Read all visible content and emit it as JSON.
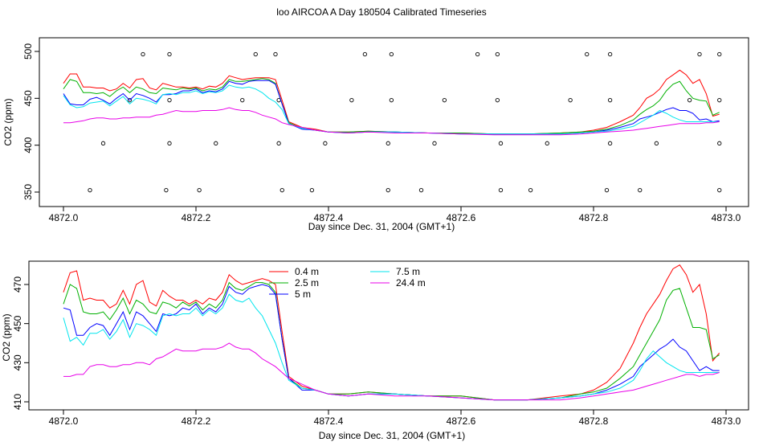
{
  "title": "loo AIRCOA A  Day 180504  Calibrated Timeseries",
  "colors": {
    "0.4 m": "#ff0000",
    "2.5 m": "#00b000",
    "5 m": "#0000ff",
    "7.5 m": "#00e5ee",
    "24.4 m": "#e800e8"
  },
  "chart_data": [
    {
      "type": "line",
      "xlabel": "Day since Dec. 31, 2004 (GMT+1)",
      "ylabel": "CO2 (ppm)",
      "xlim": [
        4871.99,
        4873.03
      ],
      "ylim": [
        348,
        503
      ],
      "xticks": [
        "4872.0",
        "4872.2",
        "4872.4",
        "4872.6",
        "4872.8",
        "4873.0"
      ],
      "yticks": [
        "350",
        "400",
        "450",
        "500"
      ],
      "grid": false,
      "x": [
        4872.0,
        4872.01,
        4872.02,
        4872.03,
        4872.04,
        4872.05,
        4872.06,
        4872.07,
        4872.08,
        4872.09,
        4872.1,
        4872.11,
        4872.12,
        4872.13,
        4872.14,
        4872.15,
        4872.16,
        4872.17,
        4872.18,
        4872.19,
        4872.2,
        4872.21,
        4872.22,
        4872.23,
        4872.24,
        4872.25,
        4872.26,
        4872.27,
        4872.28,
        4872.29,
        4872.3,
        4872.31,
        4872.32,
        4872.33,
        4872.34,
        4872.36,
        4872.38,
        4872.4,
        4872.43,
        4872.46,
        4872.5,
        4872.55,
        4872.6,
        4872.65,
        4872.7,
        4872.75,
        4872.78,
        4872.8,
        4872.82,
        4872.84,
        4872.86,
        4872.87,
        4872.88,
        4872.89,
        4872.9,
        4872.91,
        4872.92,
        4872.93,
        4872.94,
        4872.95,
        4872.96,
        4872.97,
        4872.98,
        4872.99
      ],
      "series": [
        {
          "name": "0.4 m",
          "values": [
            466,
            476,
            476,
            462,
            462,
            461,
            461,
            458,
            460,
            466,
            461,
            470,
            471,
            461,
            459,
            466,
            464,
            462,
            462,
            461,
            462,
            460,
            463,
            462,
            466,
            474,
            472,
            470,
            471,
            472,
            472,
            472,
            470,
            448,
            425,
            419,
            417,
            414,
            414,
            415,
            414,
            413,
            413,
            412,
            412,
            413,
            414,
            416,
            419,
            425,
            432,
            440,
            450,
            454,
            460,
            470,
            475,
            480,
            475,
            466,
            470,
            455,
            431,
            433
          ],
          "markers": [
            500,
            500,
            500,
            500,
            500,
            500,
            500,
            500,
            500,
            500,
            500,
            500,
            500,
            500,
            500,
            500,
            500,
            500,
            500,
            500,
            500,
            500,
            500,
            500,
            500,
            500,
            500,
            500,
            500,
            500,
            500,
            500,
            500,
            500,
            500,
            500,
            500,
            500,
            500,
            500,
            500,
            500,
            500,
            500,
            500,
            500,
            500,
            500,
            500,
            500,
            500,
            500,
            500,
            500,
            500,
            500,
            500,
            500,
            500,
            500,
            500,
            500,
            500,
            500
          ]
        },
        {
          "name": "2.5 m",
          "values": [
            460,
            470,
            468,
            456,
            456,
            455,
            456,
            452,
            458,
            462,
            456,
            462,
            460,
            456,
            455,
            461,
            460,
            459,
            461,
            460,
            461,
            458,
            460,
            459,
            462,
            470,
            468,
            468,
            469,
            470,
            471,
            470,
            466,
            444,
            424,
            418,
            416,
            414,
            414,
            415,
            414,
            413,
            413,
            412,
            412,
            413,
            414,
            415,
            417,
            421,
            427,
            433,
            438,
            442,
            448,
            458,
            465,
            468,
            458,
            450,
            448,
            447,
            432,
            435
          ]
        },
        {
          "name": "5 m",
          "values": [
            455,
            444,
            443,
            443,
            449,
            451,
            448,
            444,
            450,
            455,
            448,
            455,
            453,
            450,
            446,
            454,
            454,
            455,
            458,
            458,
            460,
            456,
            458,
            457,
            460,
            468,
            466,
            465,
            468,
            469,
            469,
            469,
            465,
            444,
            423,
            417,
            416,
            414,
            413,
            414,
            414,
            413,
            412,
            412,
            412,
            412,
            413,
            414,
            416,
            419,
            423,
            428,
            430,
            432,
            435,
            438,
            440,
            437,
            437,
            434,
            427,
            428,
            425,
            426
          ]
        },
        {
          "name": "7.5 m",
          "values": [
            453,
            443,
            440,
            441,
            445,
            446,
            447,
            442,
            447,
            452,
            444,
            450,
            449,
            447,
            444,
            454,
            455,
            454,
            456,
            456,
            458,
            455,
            457,
            456,
            458,
            464,
            462,
            461,
            462,
            460,
            456,
            450,
            446,
            438,
            423,
            418,
            416,
            414,
            413,
            414,
            414,
            413,
            412,
            412,
            412,
            412,
            413,
            414,
            415,
            417,
            420,
            424,
            428,
            432,
            437,
            434,
            430,
            427,
            425,
            425,
            425,
            425,
            425,
            425
          ]
        },
        {
          "name": "24.4 m",
          "values": [
            424,
            424,
            425,
            426,
            428,
            429,
            429,
            428,
            428,
            429,
            429,
            430,
            430,
            430,
            432,
            433,
            435,
            437,
            436,
            436,
            436,
            437,
            437,
            437,
            438,
            440,
            438,
            437,
            437,
            435,
            432,
            430,
            428,
            424,
            422,
            419,
            416,
            414,
            413,
            414,
            413,
            413,
            412,
            411,
            411,
            411,
            412,
            413,
            414,
            415,
            416,
            417,
            418,
            419,
            420,
            421,
            422,
            423,
            423,
            423,
            423,
            424,
            424,
            425
          ]
        }
      ],
      "markers": {
        "symbol": "open-circle",
        "points": [
          [
            4872.04,
            352
          ],
          [
            4872.06,
            402
          ],
          [
            4872.1,
            448
          ],
          [
            4872.12,
            497
          ],
          [
            4872.155,
            352
          ],
          [
            4872.16,
            402
          ],
          [
            4872.16,
            448
          ],
          [
            4872.16,
            497
          ],
          [
            4872.205,
            352
          ],
          [
            4872.23,
            402
          ],
          [
            4872.27,
            448
          ],
          [
            4872.29,
            497
          ],
          [
            4872.32,
            497
          ],
          [
            4872.325,
            402
          ],
          [
            4872.325,
            448
          ],
          [
            4872.33,
            352
          ],
          [
            4872.375,
            352
          ],
          [
            4872.395,
            402
          ],
          [
            4872.435,
            448
          ],
          [
            4872.455,
            497
          ],
          [
            4872.49,
            352
          ],
          [
            4872.49,
            402
          ],
          [
            4872.495,
            448
          ],
          [
            4872.495,
            497
          ],
          [
            4872.54,
            352
          ],
          [
            4872.56,
            402
          ],
          [
            4872.575,
            448
          ],
          [
            4872.625,
            497
          ],
          [
            4872.655,
            448
          ],
          [
            4872.655,
            497
          ],
          [
            4872.66,
            352
          ],
          [
            4872.66,
            402
          ],
          [
            4872.705,
            352
          ],
          [
            4872.73,
            402
          ],
          [
            4872.765,
            448
          ],
          [
            4872.79,
            497
          ],
          [
            4872.82,
            352
          ],
          [
            4872.825,
            402
          ],
          [
            4872.825,
            448
          ],
          [
            4872.825,
            497
          ],
          [
            4872.87,
            352
          ],
          [
            4872.895,
            402
          ],
          [
            4872.945,
            448
          ],
          [
            4872.96,
            497
          ],
          [
            4872.99,
            352
          ],
          [
            4872.99,
            402
          ],
          [
            4872.99,
            448
          ],
          [
            4872.99,
            497
          ]
        ]
      }
    },
    {
      "type": "line",
      "xlabel": "Day since Dec. 31, 2004 (GMT+1)",
      "ylabel": "CO2 (ppm)",
      "xlim": [
        4871.99,
        4873.03
      ],
      "ylim": [
        408,
        483
      ],
      "xticks": [
        "4872.0",
        "4872.2",
        "4872.4",
        "4872.6",
        "4872.8",
        "4873.0"
      ],
      "yticks": [
        "410",
        "430",
        "450",
        "470"
      ],
      "grid": false,
      "legend": {
        "placement": "top-center",
        "entries": [
          "0.4 m",
          "2.5 m",
          "5 m",
          "7.5 m",
          "24.4 m"
        ]
      },
      "x": [
        4872.0,
        4872.01,
        4872.02,
        4872.03,
        4872.04,
        4872.05,
        4872.06,
        4872.07,
        4872.08,
        4872.09,
        4872.1,
        4872.11,
        4872.12,
        4872.13,
        4872.14,
        4872.15,
        4872.16,
        4872.17,
        4872.18,
        4872.19,
        4872.2,
        4872.21,
        4872.22,
        4872.23,
        4872.24,
        4872.25,
        4872.26,
        4872.27,
        4872.28,
        4872.29,
        4872.3,
        4872.31,
        4872.32,
        4872.33,
        4872.34,
        4872.36,
        4872.38,
        4872.4,
        4872.43,
        4872.46,
        4872.5,
        4872.55,
        4872.6,
        4872.65,
        4872.7,
        4872.75,
        4872.78,
        4872.8,
        4872.82,
        4872.84,
        4872.86,
        4872.87,
        4872.88,
        4872.89,
        4872.9,
        4872.91,
        4872.92,
        4872.93,
        4872.94,
        4872.95,
        4872.96,
        4872.97,
        4872.98,
        4872.99
      ],
      "series": [
        {
          "name": "0.4 m",
          "values": [
            466,
            476,
            477,
            462,
            463,
            462,
            462,
            458,
            460,
            467,
            460,
            470,
            472,
            461,
            459,
            467,
            464,
            462,
            462,
            460,
            462,
            460,
            463,
            462,
            466,
            475,
            472,
            470,
            471,
            472,
            473,
            472,
            470,
            446,
            423,
            418,
            416,
            414,
            414,
            415,
            414,
            413,
            413,
            411,
            411,
            413,
            414,
            416,
            420,
            427,
            440,
            448,
            455,
            460,
            465,
            472,
            478,
            480,
            475,
            466,
            470,
            455,
            431,
            435
          ],
          "markers": []
        },
        {
          "name": "2.5 m",
          "values": [
            460,
            470,
            468,
            456,
            455,
            455,
            456,
            452,
            457,
            463,
            455,
            462,
            460,
            456,
            455,
            461,
            460,
            458,
            461,
            459,
            461,
            457,
            460,
            458,
            462,
            471,
            468,
            467,
            469,
            471,
            471,
            470,
            466,
            442,
            422,
            417,
            416,
            414,
            414,
            415,
            414,
            413,
            413,
            411,
            411,
            412,
            414,
            415,
            417,
            422,
            428,
            434,
            440,
            446,
            452,
            462,
            467,
            468,
            458,
            448,
            448,
            447,
            432,
            434
          ]
        },
        {
          "name": "5 m",
          "values": [
            458,
            457,
            444,
            444,
            448,
            450,
            449,
            444,
            450,
            456,
            447,
            456,
            454,
            450,
            446,
            455,
            454,
            455,
            458,
            457,
            460,
            455,
            458,
            456,
            460,
            469,
            466,
            465,
            468,
            469,
            470,
            469,
            465,
            442,
            422,
            416,
            416,
            414,
            413,
            414,
            414,
            413,
            412,
            411,
            411,
            412,
            413,
            414,
            416,
            419,
            423,
            428,
            431,
            434,
            437,
            439,
            442,
            438,
            436,
            431,
            426,
            428,
            426,
            426
          ]
        },
        {
          "name": "7.5 m",
          "values": [
            453,
            441,
            443,
            439,
            445,
            445,
            447,
            442,
            446,
            452,
            443,
            450,
            449,
            447,
            444,
            454,
            455,
            454,
            455,
            455,
            458,
            454,
            457,
            455,
            458,
            465,
            462,
            461,
            463,
            458,
            454,
            447,
            440,
            430,
            421,
            417,
            416,
            414,
            413,
            414,
            414,
            413,
            412,
            411,
            411,
            412,
            413,
            414,
            415,
            417,
            421,
            426,
            432,
            436,
            433,
            430,
            428,
            426,
            425,
            425,
            425,
            425,
            425,
            425
          ]
        },
        {
          "name": "24.4 m",
          "values": [
            423,
            423,
            424,
            424,
            428,
            429,
            429,
            428,
            428,
            429,
            429,
            430,
            430,
            429,
            432,
            433,
            435,
            437,
            436,
            436,
            436,
            437,
            437,
            437,
            438,
            440,
            438,
            437,
            437,
            435,
            432,
            430,
            428,
            425,
            422,
            419,
            416,
            414,
            413,
            414,
            413,
            413,
            412,
            411,
            411,
            411,
            412,
            413,
            414,
            415,
            416,
            417,
            418,
            419,
            420,
            421,
            422,
            423,
            424,
            424,
            423,
            424,
            424,
            425
          ]
        }
      ]
    }
  ]
}
